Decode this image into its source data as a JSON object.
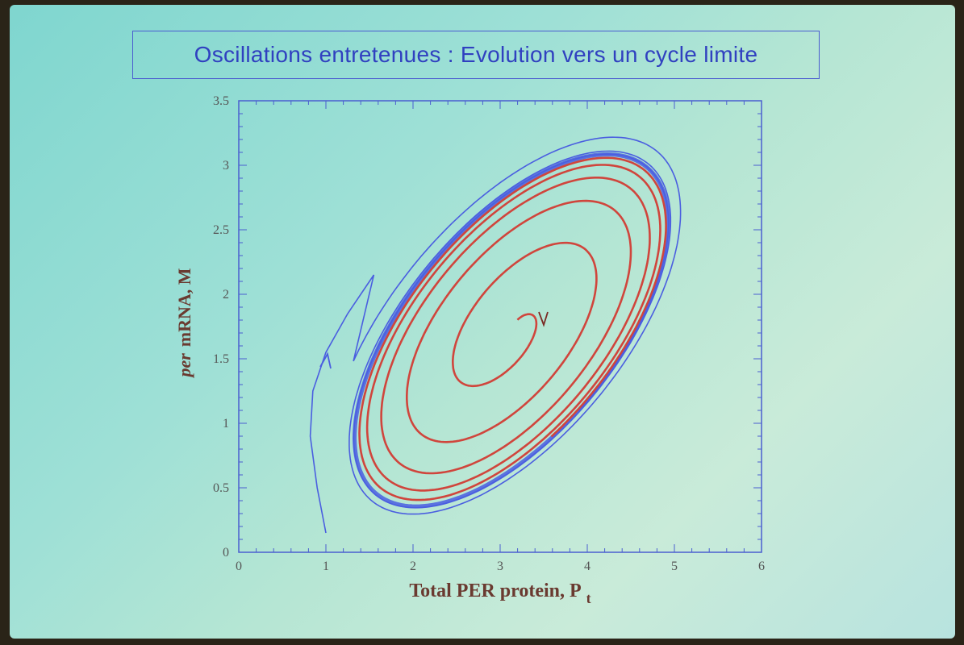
{
  "slide": {
    "title": "Oscillations entretenues :  Evolution vers un cycle limite"
  },
  "chart_data": {
    "type": "line",
    "title": "Oscillations entretenues :  Evolution vers un cycle limite",
    "xlabel": "Total PER protein, P",
    "xlabel_subscript": "t",
    "ylabel_italic": "per",
    "ylabel_rest": "mRNA, M",
    "xlim": [
      0,
      6
    ],
    "ylim": [
      0,
      3.5
    ],
    "x_ticks": [
      "0",
      "1",
      "2",
      "3",
      "4",
      "5",
      "6"
    ],
    "y_ticks": [
      "0",
      "0.5",
      "1",
      "1.5",
      "2",
      "2.5",
      "3",
      "3.5"
    ],
    "limit_cycle": {
      "center": [
        3.13,
        1.72
      ],
      "radius_along_major": 2.05,
      "radius_along_minor": 0.95,
      "major_axis_direction": [
        1,
        0.64
      ]
    },
    "series": [
      {
        "color": "#4a5ee0",
        "description_values": {
          "start": [
            1.0,
            0.15
          ],
          "arrow_at": [
            1.0,
            1.5
          ],
          "outer_turns": 2
        }
      },
      {
        "color": "#d0453c",
        "description_values": {
          "start": [
            3.05,
            1.9
          ],
          "arrow_at": [
            3.5,
            1.8
          ],
          "turns": 5
        }
      }
    ],
    "grid": false,
    "legend": "none"
  }
}
